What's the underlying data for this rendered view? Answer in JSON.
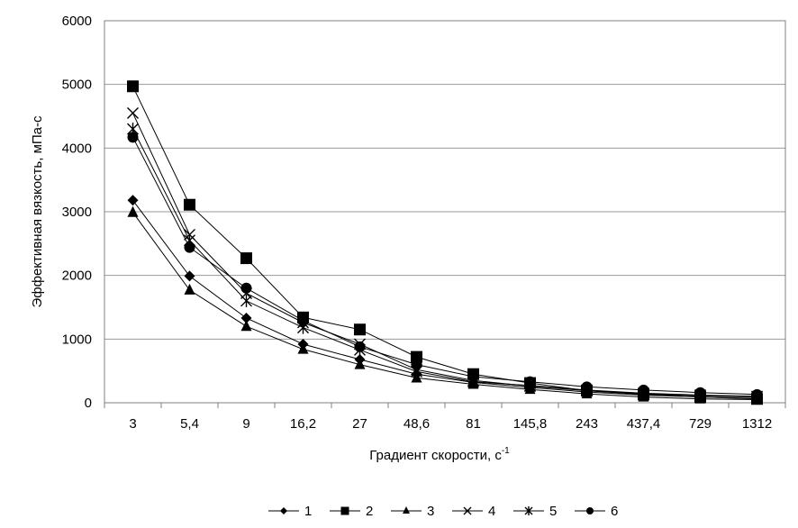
{
  "chart_data": {
    "type": "line",
    "xlabel": "Градиент скорости, с",
    "xlabel_sup": "-1",
    "ylabel": "Эффективная вязкость, мПа-с",
    "categories": [
      "3",
      "5,4",
      "9",
      "16,2",
      "27",
      "48,6",
      "81",
      "145,8",
      "243",
      "437,4",
      "729",
      "1312"
    ],
    "ylim": [
      0,
      6000
    ],
    "yticks": [
      "0",
      "1000",
      "2000",
      "3000",
      "4000",
      "5000",
      "6000"
    ],
    "grid": "horizontal",
    "legend_position": "bottom",
    "series": [
      {
        "name": "1",
        "marker": "diamond",
        "values": [
          3180,
          1990,
          1330,
          920,
          680,
          450,
          320,
          240,
          170,
          120,
          90,
          70
        ]
      },
      {
        "name": "2",
        "marker": "square",
        "values": [
          4970,
          3110,
          2270,
          1340,
          1150,
          720,
          450,
          310,
          190,
          130,
          90,
          60
        ]
      },
      {
        "name": "3",
        "marker": "triangle",
        "values": [
          2990,
          1770,
          1200,
          840,
          600,
          390,
          290,
          210,
          140,
          90,
          60,
          50
        ]
      },
      {
        "name": "4",
        "marker": "x",
        "values": [
          4550,
          2640,
          1720,
          1260,
          920,
          520,
          350,
          260,
          190,
          140,
          110,
          90
        ]
      },
      {
        "name": "5",
        "marker": "star",
        "values": [
          4300,
          2550,
          1600,
          1180,
          830,
          490,
          330,
          270,
          200,
          150,
          120,
          100
        ]
      },
      {
        "name": "6",
        "marker": "circle",
        "values": [
          4170,
          2440,
          1800,
          1290,
          880,
          600,
          410,
          330,
          250,
          200,
          160,
          130
        ]
      }
    ]
  }
}
